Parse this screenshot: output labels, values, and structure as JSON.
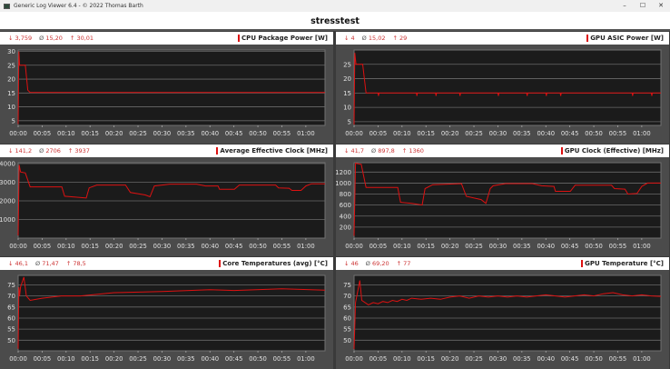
{
  "window": {
    "title": "Generic Log Viewer 6.4 - © 2022 Thomas Barth",
    "minimize": "–",
    "maximize": "☐",
    "close": "✕"
  },
  "header": {
    "title": "stresstest"
  },
  "colors": {
    "series": "#dd1111",
    "plot_bg": "#1b1b1b",
    "grid": "#6a6a6a",
    "panel_bg": "#4b4b4b",
    "stat_text": "#cc3333"
  },
  "chart_data": [
    {
      "type": "line",
      "title": "CPU Package Power [W]",
      "stats": {
        "min": "3,759",
        "avg": "15,20",
        "max": "30,01"
      },
      "ylim": [
        3.3,
        30.5
      ],
      "yticks": [
        5,
        10,
        15,
        20,
        25,
        30
      ],
      "xlim": [
        0,
        64
      ],
      "xticks": [
        "00:00",
        "00:05",
        "00:10",
        "00:15",
        "00:20",
        "00:25",
        "00:30",
        "00:35",
        "00:40",
        "00:45",
        "00:50",
        "00:55",
        "01:00"
      ],
      "grid": true,
      "x": [
        0,
        0.15,
        0.3,
        1.5,
        2,
        2.5,
        64
      ],
      "y": [
        3.8,
        30,
        25,
        25,
        16,
        15.2,
        15.2
      ]
    },
    {
      "type": "line",
      "title": "GPU ASIC Power [W]",
      "stats": {
        "min": "4",
        "avg": "15,02",
        "max": "29"
      },
      "ylim": [
        3.7,
        30
      ],
      "yticks": [
        5,
        10,
        15,
        20,
        25
      ],
      "xlim": [
        0,
        64
      ],
      "xticks": [
        "00:00",
        "00:05",
        "00:10",
        "00:15",
        "00:20",
        "00:25",
        "00:30",
        "00:35",
        "00:40",
        "00:45",
        "00:50",
        "00:55",
        "01:00"
      ],
      "grid": true,
      "x": [
        0,
        0.15,
        0.4,
        1.8,
        2.5,
        5,
        5.1,
        5.2,
        13,
        13.1,
        13.2,
        17,
        17.1,
        17.2,
        22,
        22.1,
        22.2,
        30,
        30.1,
        30.2,
        36,
        36.1,
        36.2,
        40,
        40.1,
        40.2,
        43,
        43.1,
        43.2,
        58,
        58.1,
        58.2,
        62,
        62.1,
        62.2,
        64
      ],
      "y": [
        4,
        29,
        25,
        25,
        15,
        15,
        14,
        15,
        15,
        14,
        15,
        15,
        14,
        15,
        15,
        14,
        15,
        15,
        14,
        15,
        15,
        14,
        15,
        15,
        14,
        15,
        15,
        14,
        15,
        15,
        14,
        15,
        15,
        14,
        15,
        15
      ]
    },
    {
      "type": "line",
      "title": "Average Effective Clock [MHz]",
      "stats": {
        "min": "141,2",
        "avg": "2706",
        "max": "3937"
      },
      "ylim": [
        0,
        4050
      ],
      "yticks": [
        1000,
        2000,
        3000,
        4000
      ],
      "xlim": [
        0,
        64
      ],
      "xticks": [
        "00:00",
        "00:05",
        "00:10",
        "00:15",
        "00:20",
        "00:25",
        "00:30",
        "00:35",
        "00:40",
        "00:45",
        "00:50",
        "00:55",
        "01:00"
      ],
      "grid": true,
      "x": [
        0,
        0.2,
        0.5,
        1.5,
        2.5,
        9.1,
        9.7,
        12,
        14.2,
        14.8,
        16.4,
        22.4,
        23.4,
        26.5,
        27.5,
        28.4,
        31.6,
        37.2,
        39.1,
        41.7,
        42,
        45.1,
        46.1,
        53.7,
        54.3,
        56.5,
        57.1,
        59,
        60,
        61.2,
        64
      ],
      "y": [
        141,
        3937,
        3550,
        3500,
        2750,
        2750,
        2250,
        2200,
        2150,
        2700,
        2850,
        2850,
        2450,
        2320,
        2220,
        2800,
        2900,
        2900,
        2800,
        2800,
        2620,
        2620,
        2850,
        2850,
        2700,
        2680,
        2560,
        2560,
        2800,
        2920,
        2920
      ]
    },
    {
      "type": "line",
      "title": "GPU Clock (Effective) [MHz]",
      "stats": {
        "min": "41,7",
        "avg": "897,8",
        "max": "1360"
      },
      "ylim": [
        0,
        1370
      ],
      "yticks": [
        200,
        400,
        600,
        800,
        1000,
        1200
      ],
      "xlim": [
        0,
        64
      ],
      "xticks": [
        "00:00",
        "00:05",
        "00:10",
        "00:15",
        "00:20",
        "00:25",
        "00:30",
        "00:35",
        "00:40",
        "00:45",
        "00:50",
        "00:55",
        "01:00"
      ],
      "grid": true,
      "x": [
        0,
        0.3,
        1.5,
        2.5,
        9.1,
        9.7,
        12,
        14.2,
        14.8,
        16.4,
        22.4,
        23.4,
        26.5,
        27.5,
        28.4,
        29,
        31.6,
        37.2,
        39.1,
        41.7,
        42,
        45.1,
        46.1,
        53.7,
        54.3,
        56.5,
        57.1,
        59,
        60,
        61.2,
        64
      ],
      "y": [
        41.7,
        1360,
        1340,
        920,
        920,
        650,
        630,
        600,
        900,
        970,
        990,
        760,
        700,
        630,
        900,
        950,
        990,
        990,
        950,
        940,
        850,
        850,
        960,
        960,
        900,
        890,
        800,
        810,
        940,
        1000,
        1000
      ]
    },
    {
      "type": "line",
      "title": "Core Temperatures (avg) [°C]",
      "stats": {
        "min": "46,1",
        "avg": "71,47",
        "max": "78,5"
      },
      "ylim": [
        45.2,
        79.3
      ],
      "yticks": [
        50,
        55,
        60,
        65,
        70,
        75
      ],
      "xlim": [
        0,
        64
      ],
      "xticks": [
        "00:00",
        "00:05",
        "00:10",
        "00:15",
        "00:20",
        "00:25",
        "00:30",
        "00:35",
        "00:40",
        "00:45",
        "00:50",
        "00:55",
        "01:00"
      ],
      "grid": true,
      "x": [
        0,
        0.15,
        0.3,
        0.5,
        1.2,
        1.7,
        2.5,
        5,
        9,
        13,
        20,
        30,
        40,
        45,
        55,
        64
      ],
      "y": [
        46.1,
        74,
        70,
        74,
        78.5,
        70,
        68,
        69,
        70,
        70,
        71.5,
        72,
        72.8,
        72.5,
        73.2,
        72.6
      ]
    },
    {
      "type": "line",
      "title": "GPU Temperature [°C]",
      "stats": {
        "min": "46",
        "avg": "69,20",
        "max": "77"
      },
      "ylim": [
        45.2,
        79.3
      ],
      "yticks": [
        50,
        55,
        60,
        65,
        70,
        75
      ],
      "xlim": [
        0,
        64
      ],
      "xticks": [
        "00:00",
        "00:05",
        "00:10",
        "00:15",
        "00:20",
        "00:25",
        "00:30",
        "00:35",
        "00:40",
        "00:45",
        "00:50",
        "00:55",
        "01:00"
      ],
      "grid": true,
      "x": [
        0,
        0.3,
        1.2,
        1.6,
        3,
        4,
        5,
        6,
        7,
        8,
        9,
        10,
        11,
        12,
        14,
        16,
        18,
        20,
        22,
        24,
        26,
        28,
        30,
        32,
        34,
        36,
        38,
        40,
        42,
        44,
        46,
        48,
        50,
        52,
        54,
        56,
        58,
        60,
        62,
        64
      ],
      "y": [
        46,
        67,
        77,
        68,
        66,
        67,
        66.5,
        67.5,
        67,
        68,
        67.5,
        68.5,
        68,
        69,
        68.5,
        69,
        68.5,
        69.5,
        70,
        69,
        70,
        69.5,
        70,
        69.5,
        70,
        69.5,
        70,
        70.5,
        70,
        69.5,
        70,
        70.5,
        70,
        71,
        71.5,
        70.5,
        70,
        70.5,
        70,
        69.8
      ]
    }
  ]
}
